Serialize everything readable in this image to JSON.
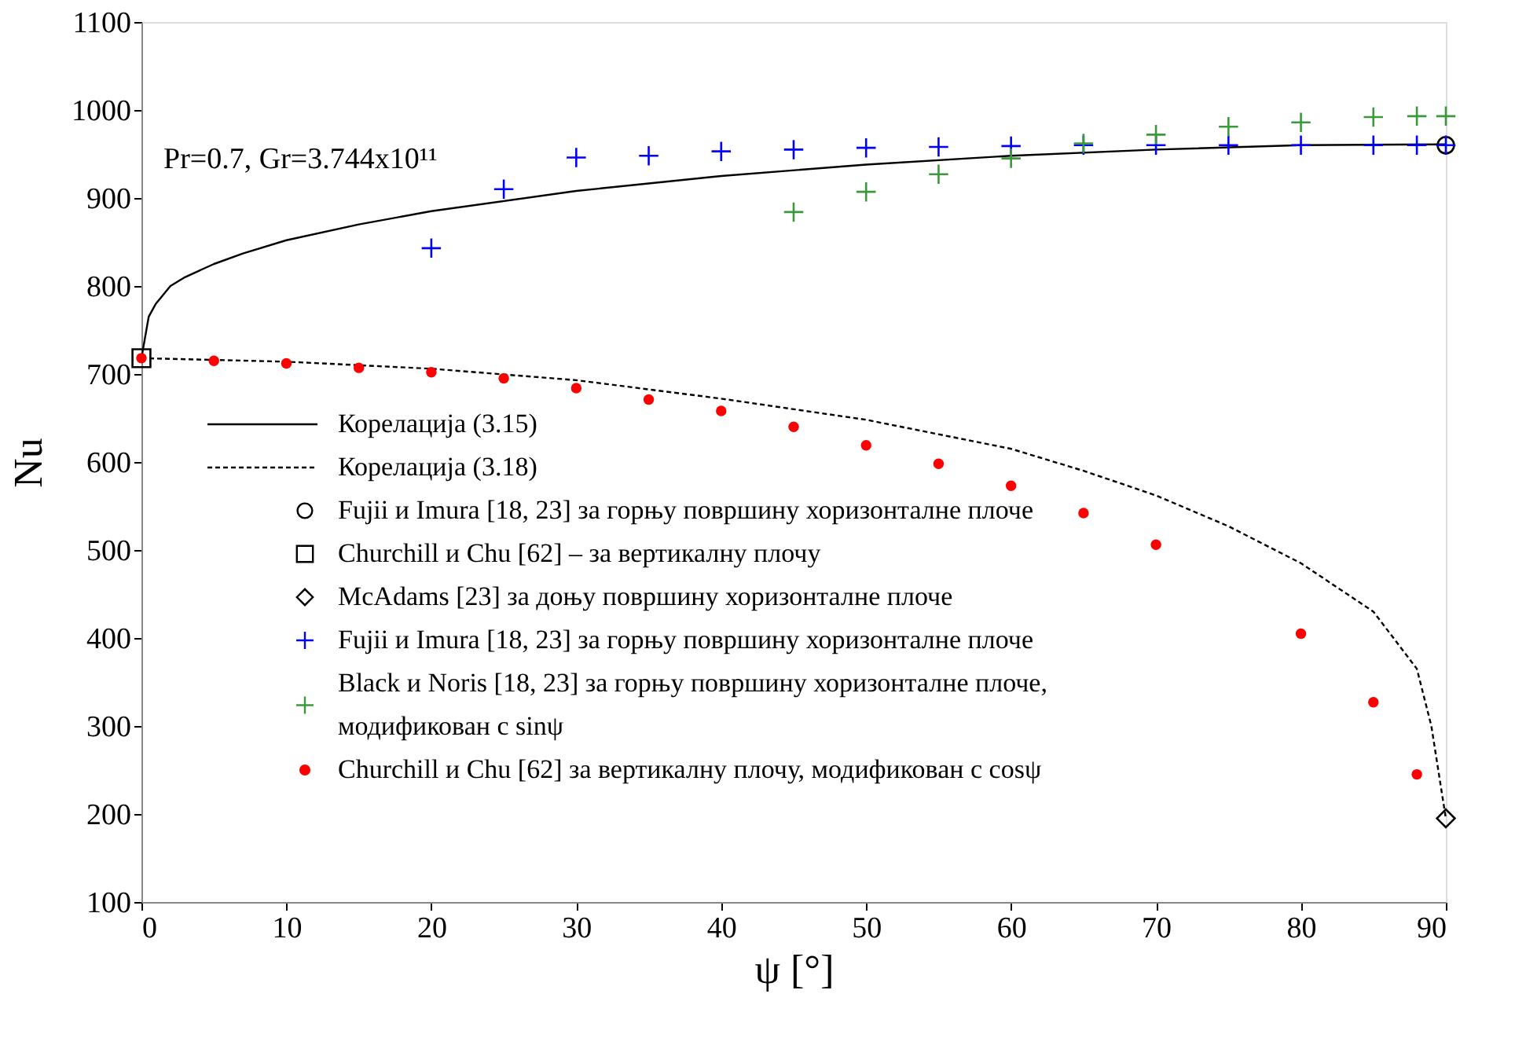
{
  "chart_data": {
    "type": "scatter",
    "xlabel": "ψ [°]",
    "ylabel": "Nu",
    "xlim": [
      0,
      90
    ],
    "ylim": [
      100,
      1100
    ],
    "xticks": [
      0,
      10,
      20,
      30,
      40,
      50,
      60,
      70,
      80,
      90
    ],
    "yticks": [
      100,
      200,
      300,
      400,
      500,
      600,
      700,
      800,
      900,
      1000,
      1100
    ],
    "grid": false,
    "legend": "bottom left",
    "annotations": [
      "Pr=0.7, Gr=3.744x10¹¹"
    ],
    "series": [
      {
        "name": "Корелација (3.15)",
        "type": "line",
        "line_style": "solid",
        "marker": "none",
        "color": "#000000",
        "x": [
          0,
          0.5,
          1,
          2,
          3,
          5,
          7,
          10,
          15,
          20,
          30,
          40,
          50,
          60,
          70,
          80,
          90
        ],
        "values": [
          718,
          765,
          780,
          800,
          810,
          825,
          837,
          852,
          870,
          885,
          908,
          925,
          938,
          948,
          955,
          960,
          961
        ]
      },
      {
        "name": "Корелација (3.18)",
        "type": "line",
        "line_style": "dashed",
        "marker": "none",
        "color": "#000000",
        "x": [
          0,
          10,
          20,
          30,
          40,
          50,
          60,
          65,
          70,
          75,
          80,
          85,
          88,
          89,
          90
        ],
        "values": [
          718,
          714,
          706,
          693,
          672,
          648,
          615,
          590,
          562,
          527,
          485,
          430,
          365,
          300,
          195
        ]
      },
      {
        "name": "Fujii и Imura [18, 23] за горњу површину хоризонталне плоче",
        "marker": "circle",
        "color": "#000000",
        "x": [
          90
        ],
        "values": [
          960
        ]
      },
      {
        "name": "Churchill и Chu [62] – за вертикалну плочу",
        "marker": "square",
        "color": "#000000",
        "x": [
          0
        ],
        "values": [
          718
        ]
      },
      {
        "name": "McAdams [23] за доњу површину хоризонталне плоче",
        "marker": "diamond",
        "color": "#000000",
        "x": [
          90
        ],
        "values": [
          195
        ]
      },
      {
        "name": "Fujii и Imura [18, 23] за горњу површину хоризонталне плоче",
        "marker": "cross",
        "color": "#0000ff",
        "x": [
          20,
          25,
          30,
          35,
          40,
          45,
          50,
          55,
          60,
          65,
          70,
          75,
          80,
          85,
          88,
          90
        ],
        "values": [
          843,
          910,
          946,
          948,
          953,
          955,
          957,
          958,
          959,
          960,
          960,
          960,
          960,
          960,
          960,
          960
        ]
      },
      {
        "name": "Black и Noris [18, 23] за горњу површину хоризонталне плоче,\nмодификован с sinψ",
        "marker": "cross",
        "color": "#3a9a3a",
        "x": [
          45,
          50,
          55,
          60,
          65,
          70,
          75,
          80,
          85,
          88,
          90
        ],
        "values": [
          884,
          907,
          927,
          945,
          962,
          972,
          981,
          986,
          992,
          993,
          993
        ]
      },
      {
        "name": "Churchill и Chu [62] за вертикалну плочу, модификован с cosψ",
        "marker": "circle",
        "color": "#ff0000",
        "x": [
          0,
          5,
          10,
          15,
          20,
          25,
          30,
          35,
          40,
          45,
          50,
          55,
          60,
          65,
          70,
          80,
          85,
          88
        ],
        "values": [
          718,
          715,
          712,
          707,
          702,
          695,
          684,
          671,
          658,
          640,
          619,
          598,
          573,
          542,
          506,
          405,
          327,
          245
        ]
      }
    ]
  }
}
